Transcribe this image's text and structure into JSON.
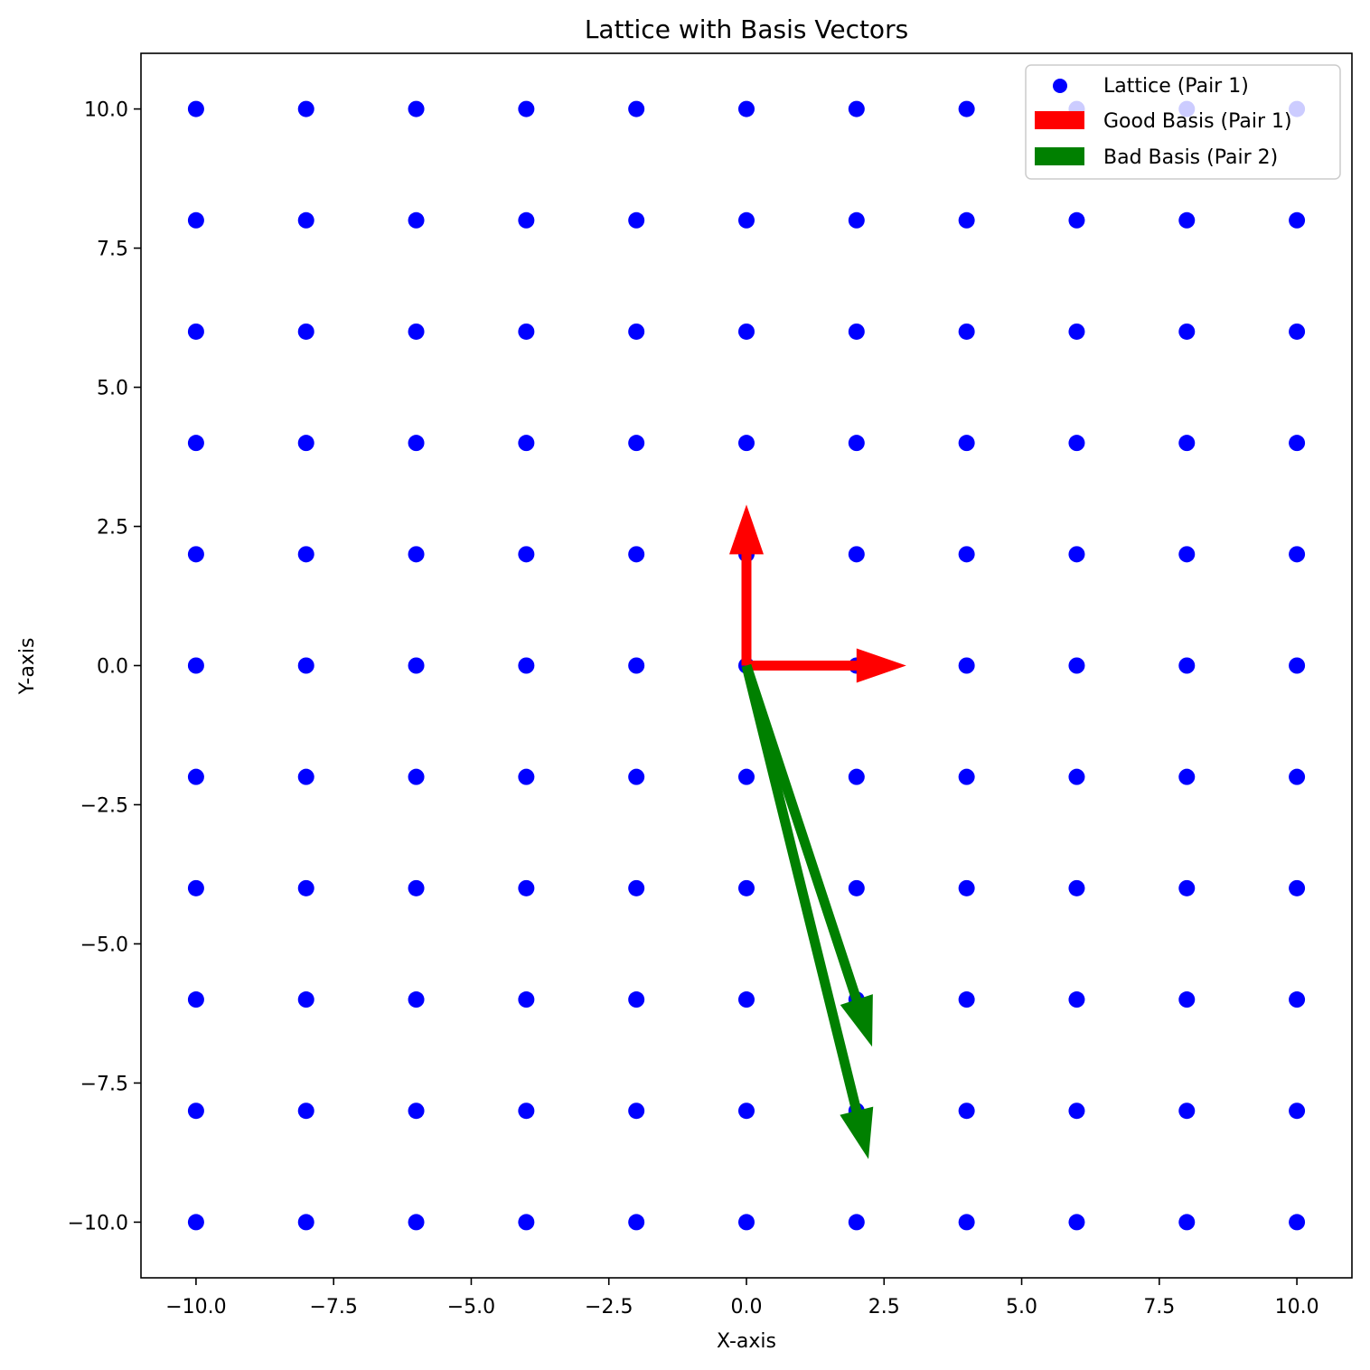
{
  "chart_data": {
    "type": "scatter",
    "title": "Lattice with Basis Vectors",
    "xlabel": "X-axis",
    "ylabel": "Y-axis",
    "xlim": [
      -11,
      11
    ],
    "ylim": [
      -11,
      11
    ],
    "xticks": [
      -10.0,
      -7.5,
      -5.0,
      -2.5,
      0.0,
      2.5,
      5.0,
      7.5,
      10.0
    ],
    "yticks": [
      -10.0,
      -7.5,
      -5.0,
      -2.5,
      0.0,
      2.5,
      5.0,
      7.5,
      10.0
    ],
    "xtick_labels": [
      "−10.0",
      "−7.5",
      "−5.0",
      "−2.5",
      "0.0",
      "2.5",
      "5.0",
      "7.5",
      "10.0"
    ],
    "ytick_labels": [
      "−10.0",
      "−7.5",
      "−5.0",
      "−2.5",
      "0.0",
      "2.5",
      "5.0",
      "7.5",
      "10.0"
    ],
    "grid": false,
    "legend_position": "top-right",
    "lattice": {
      "name": "Lattice (Pair 1)",
      "color": "#0000ff",
      "x_values": [
        -10,
        -8,
        -6,
        -4,
        -2,
        0,
        2,
        4,
        6,
        8,
        10
      ],
      "y_values": [
        -10,
        -8,
        -6,
        -4,
        -2,
        0,
        2,
        4,
        6,
        8,
        10
      ]
    },
    "vector_sets": [
      {
        "name": "Good Basis (Pair 1)",
        "color": "#ff0000",
        "vectors": [
          {
            "x0": 0,
            "y0": 0,
            "dx": 2,
            "dy": 0
          },
          {
            "x0": 0,
            "y0": 0,
            "dx": 0,
            "dy": 2
          }
        ]
      },
      {
        "name": "Bad Basis (Pair 2)",
        "color": "#008000",
        "vectors": [
          {
            "x0": 0,
            "y0": 0,
            "dx": 2,
            "dy": -6
          },
          {
            "x0": 0,
            "y0": 0,
            "dx": 2,
            "dy": -8
          }
        ]
      }
    ]
  }
}
